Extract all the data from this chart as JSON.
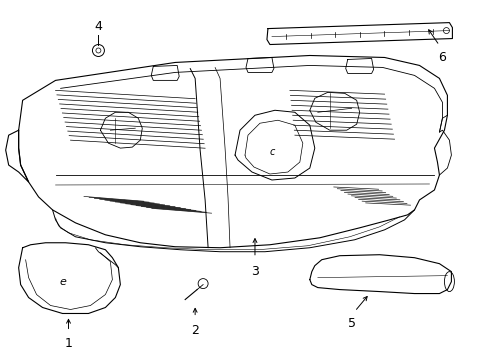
{
  "bg_color": "#ffffff",
  "line_color": "#000000",
  "lw": 0.8,
  "fig_width": 4.89,
  "fig_height": 3.6,
  "dpi": 100
}
